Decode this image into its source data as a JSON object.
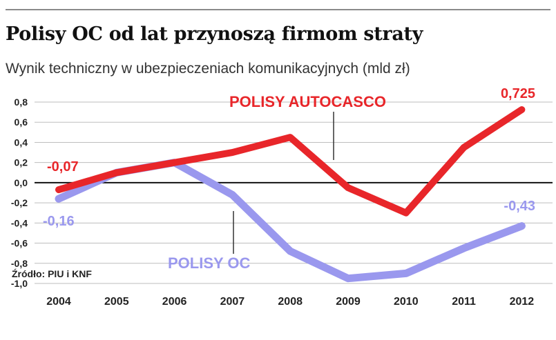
{
  "title": "Polisy OC od lat przynoszą firmom straty",
  "subtitle": "Wynik techniczny w ubezpieczeniach komunikacyjnych (mld zł)",
  "source": "Źródło: PIU i KNF",
  "chart_data": {
    "type": "line",
    "x": [
      "2004",
      "2005",
      "2006",
      "2007",
      "2008",
      "2009",
      "2010",
      "2011",
      "2012"
    ],
    "y_ticks": [
      "0,8",
      "0,6",
      "0,4",
      "0,2",
      "0,0",
      "-0,2",
      "-0,4",
      "-0,6",
      "-0,8",
      "-1,0"
    ],
    "ylim": [
      -1.0,
      0.8
    ],
    "grid": true,
    "series": [
      {
        "name": "POLISY AUTOCASCO",
        "color": "#e8262a",
        "values": [
          -0.07,
          0.1,
          0.2,
          0.3,
          0.45,
          -0.05,
          -0.3,
          0.35,
          0.725
        ]
      },
      {
        "name": "POLISY OC",
        "color": "#9a98ee",
        "values": [
          -0.16,
          0.1,
          0.2,
          -0.12,
          -0.68,
          -0.95,
          -0.9,
          -0.65,
          -0.43
        ]
      }
    ],
    "data_labels": [
      {
        "series": 0,
        "index": 0,
        "text": "-0,07"
      },
      {
        "series": 0,
        "index": 8,
        "text": "0,725"
      },
      {
        "series": 1,
        "index": 0,
        "text": "-0,16"
      },
      {
        "series": 1,
        "index": 8,
        "text": "-0,43"
      }
    ]
  }
}
